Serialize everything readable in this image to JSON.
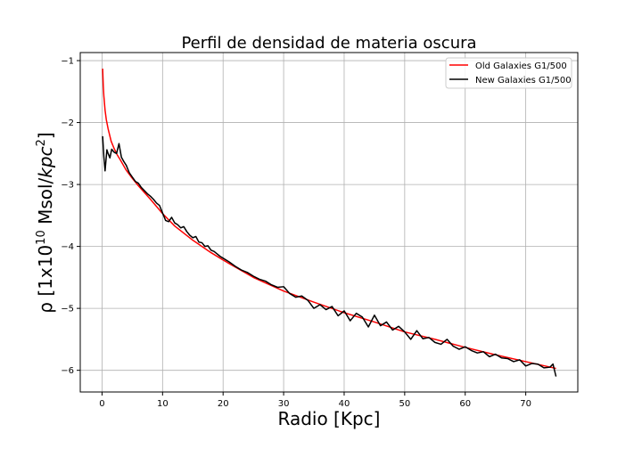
{
  "chart_data": {
    "type": "line",
    "title": "Perfil de densidad de materia oscura",
    "xlabel": "Radio [Kpc]",
    "ylabel": {
      "prefix": "ρ [1x10",
      "exp": "10",
      "unit": " Msol/",
      "unit_italic": "kpc",
      "unit_exp": "2",
      "suffix": "]"
    },
    "xlim": [
      -3.6,
      78.6
    ],
    "ylim": [
      -6.35,
      -0.87
    ],
    "xticks": [
      0,
      10,
      20,
      30,
      40,
      50,
      60,
      70
    ],
    "xtick_labels": [
      "0",
      "10",
      "20",
      "30",
      "40",
      "50",
      "60",
      "70"
    ],
    "yticks": [
      -1,
      -2,
      -3,
      -4,
      -5,
      -6
    ],
    "ytick_labels": [
      "−1",
      "−2",
      "−3",
      "−4",
      "−5",
      "−6"
    ],
    "grid": true,
    "legend_position": "top-right",
    "series": [
      {
        "name": "Old Galaxies G1/500",
        "color": "#ff0000",
        "x": [
          0.1,
          0.2,
          0.3,
          0.5,
          0.7,
          1.0,
          1.5,
          2.0,
          2.5,
          3.0,
          4.0,
          5.0,
          6.0,
          7.0,
          8.0,
          10.0,
          12.0,
          15.0,
          18.0,
          20.0,
          25.0,
          30.0,
          35.0,
          40.0,
          45.0,
          50.0,
          55.0,
          60.0,
          65.0,
          70.0,
          75.0
        ],
        "y": [
          -1.13,
          -1.4,
          -1.57,
          -1.8,
          -1.95,
          -2.1,
          -2.3,
          -2.42,
          -2.52,
          -2.6,
          -2.77,
          -2.9,
          -3.02,
          -3.13,
          -3.24,
          -3.47,
          -3.67,
          -3.9,
          -4.1,
          -4.22,
          -4.5,
          -4.72,
          -4.9,
          -5.07,
          -5.22,
          -5.38,
          -5.5,
          -5.63,
          -5.75,
          -5.86,
          -5.97
        ]
      },
      {
        "name": "New Galaxies G1/500",
        "color": "#000000",
        "x": [
          0.1,
          0.3,
          0.5,
          0.8,
          1.0,
          1.3,
          1.6,
          2.0,
          2.4,
          2.8,
          3.2,
          3.6,
          4.0,
          4.5,
          5.0,
          5.5,
          6.0,
          6.5,
          7.0,
          7.5,
          8.0,
          8.5,
          9.0,
          9.5,
          10.0,
          10.5,
          11.0,
          11.5,
          12.0,
          12.5,
          13.0,
          13.5,
          14.0,
          14.5,
          15.0,
          15.5,
          16.0,
          16.5,
          17.0,
          17.5,
          18.0,
          18.5,
          19.0,
          19.5,
          20.0,
          21.0,
          22.0,
          23.0,
          24.0,
          25.0,
          26.0,
          27.0,
          28.0,
          29.0,
          30.0,
          31.0,
          32.0,
          33.0,
          34.0,
          35.0,
          36.0,
          37.0,
          38.0,
          39.0,
          40.0,
          41.0,
          42.0,
          43.0,
          44.0,
          45.0,
          46.0,
          47.0,
          48.0,
          49.0,
          50.0,
          51.0,
          52.0,
          53.0,
          54.0,
          55.0,
          56.0,
          57.0,
          58.0,
          59.0,
          60.0,
          61.0,
          62.0,
          63.0,
          64.0,
          65.0,
          66.0,
          67.0,
          68.0,
          69.0,
          70.0,
          71.0,
          72.0,
          73.0,
          74.0,
          74.5,
          75.0
        ],
        "y": [
          -2.22,
          -2.55,
          -2.78,
          -2.44,
          -2.5,
          -2.57,
          -2.43,
          -2.48,
          -2.5,
          -2.34,
          -2.56,
          -2.63,
          -2.69,
          -2.81,
          -2.88,
          -2.95,
          -2.98,
          -3.05,
          -3.1,
          -3.15,
          -3.19,
          -3.24,
          -3.3,
          -3.34,
          -3.46,
          -3.58,
          -3.6,
          -3.53,
          -3.62,
          -3.65,
          -3.7,
          -3.68,
          -3.76,
          -3.82,
          -3.86,
          -3.84,
          -3.93,
          -3.94,
          -4.0,
          -3.99,
          -4.06,
          -4.08,
          -4.12,
          -4.16,
          -4.19,
          -4.25,
          -4.32,
          -4.38,
          -4.42,
          -4.48,
          -4.53,
          -4.56,
          -4.62,
          -4.66,
          -4.65,
          -4.76,
          -4.82,
          -4.8,
          -4.87,
          -5.0,
          -4.94,
          -5.02,
          -4.97,
          -5.12,
          -5.04,
          -5.2,
          -5.08,
          -5.14,
          -5.3,
          -5.11,
          -5.28,
          -5.22,
          -5.35,
          -5.29,
          -5.38,
          -5.5,
          -5.36,
          -5.49,
          -5.47,
          -5.55,
          -5.58,
          -5.5,
          -5.61,
          -5.66,
          -5.62,
          -5.68,
          -5.72,
          -5.7,
          -5.78,
          -5.74,
          -5.8,
          -5.81,
          -5.86,
          -5.83,
          -5.93,
          -5.89,
          -5.9,
          -5.96,
          -5.95,
          -5.9,
          -6.1
        ]
      }
    ]
  }
}
